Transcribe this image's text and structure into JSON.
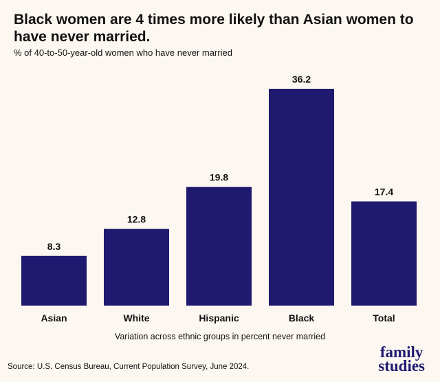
{
  "header": {
    "title": "Black women are 4 times more likely than Asian women to have never married.",
    "subtitle": "% of 40-to-50-year-old women who have never married"
  },
  "footer": {
    "source": "Source: U.S. Census Bureau, Current Population Survey, June 2024.",
    "logo_line1": "family",
    "logo_line2": "studies"
  },
  "colors": {
    "bar": "#1f1970",
    "background": "#fdf7f1",
    "text": "#111111"
  },
  "chart_data": {
    "type": "bar",
    "title": "Black women are 4 times more likely than Asian women to have never married.",
    "subtitle": "% of 40-to-50-year-old women who have never married",
    "xlabel": "Variation across ethnic groups in percent never married",
    "ylabel": "",
    "categories": [
      "Asian",
      "White",
      "Hispanic",
      "Black",
      "Total"
    ],
    "values": [
      8.3,
      12.8,
      19.8,
      36.2,
      17.4
    ],
    "value_labels": [
      "8.3",
      "12.8",
      "19.8",
      "36.2",
      "17.4"
    ],
    "ylim": [
      0,
      36.2
    ],
    "grid": false,
    "legend": "none"
  }
}
